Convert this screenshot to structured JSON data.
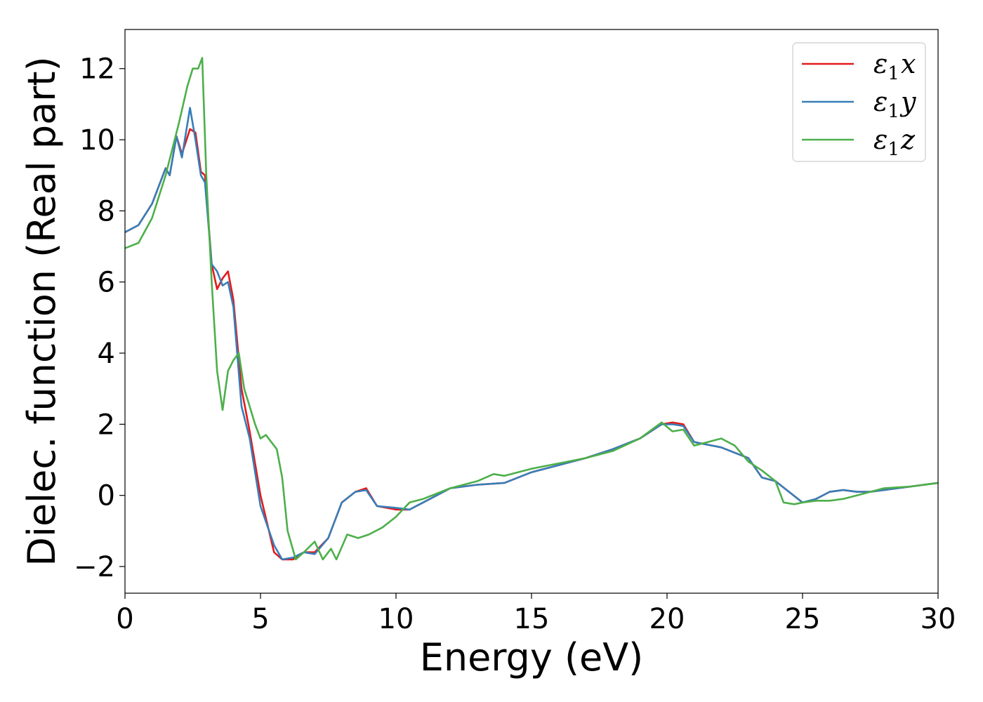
{
  "chart_data": {
    "type": "line",
    "title": "",
    "xlabel": "Energy (eV)",
    "ylabel": "Dielec. function (Real part)",
    "xlim": [
      0,
      30
    ],
    "ylim": [
      -2.75,
      13.1
    ],
    "xticks": [
      0,
      5,
      10,
      15,
      20,
      25,
      30
    ],
    "xtick_labels": [
      "0",
      "5",
      "10",
      "15",
      "20",
      "25",
      "30"
    ],
    "yticks": [
      -2,
      0,
      2,
      4,
      6,
      8,
      10,
      12
    ],
    "ytick_labels": [
      "−2",
      "0",
      "2",
      "4",
      "6",
      "8",
      "10",
      "12"
    ],
    "grid": false,
    "legend_position": "top-right",
    "series": [
      {
        "name": "ε₁x",
        "legend_main": "ε",
        "legend_sub": "1",
        "legend_var": "x",
        "color": "#e41a1c",
        "x": [
          0,
          0.5,
          1.0,
          1.3,
          1.5,
          1.65,
          1.9,
          2.1,
          2.4,
          2.6,
          2.8,
          2.95,
          3.2,
          3.4,
          3.6,
          3.8,
          4.0,
          4.3,
          4.6,
          5.0,
          5.5,
          5.8,
          6.2,
          6.6,
          7.0,
          7.5,
          8.0,
          8.5,
          8.9,
          9.3,
          10.0,
          10.5,
          11.0,
          12.0,
          13.0,
          14.0,
          15.0,
          16.0,
          17.0,
          18.0,
          19.0,
          19.8,
          20.2,
          20.6,
          21.0,
          22.0,
          22.5,
          23.0,
          23.5,
          24.0,
          24.5,
          25.0,
          25.5,
          26.0,
          26.5,
          27.0,
          27.5,
          28.0,
          29.0,
          30.0
        ],
        "values": [
          7.4,
          7.6,
          8.2,
          8.8,
          9.2,
          9.0,
          10.1,
          9.6,
          10.3,
          10.2,
          9.1,
          9.0,
          6.5,
          5.8,
          6.1,
          6.3,
          5.5,
          3.0,
          1.8,
          0.0,
          -1.6,
          -1.8,
          -1.8,
          -1.6,
          -1.6,
          -1.2,
          -0.2,
          0.1,
          0.2,
          -0.3,
          -0.4,
          -0.4,
          -0.2,
          0.2,
          0.3,
          0.35,
          0.65,
          0.85,
          1.05,
          1.3,
          1.6,
          2.0,
          2.05,
          2.0,
          1.5,
          1.35,
          1.2,
          1.05,
          0.5,
          0.4,
          0.1,
          -0.2,
          -0.1,
          0.1,
          0.15,
          0.1,
          0.1,
          0.15,
          0.25,
          0.35
        ]
      },
      {
        "name": "ε₁y",
        "legend_main": "ε",
        "legend_sub": "1",
        "legend_var": "y",
        "color": "#377eb8",
        "x": [
          0,
          0.5,
          1.0,
          1.3,
          1.5,
          1.65,
          1.9,
          2.1,
          2.4,
          2.6,
          2.8,
          2.95,
          3.2,
          3.4,
          3.6,
          3.8,
          4.0,
          4.3,
          4.6,
          5.0,
          5.5,
          5.8,
          6.2,
          6.6,
          7.0,
          7.5,
          8.0,
          8.5,
          8.9,
          9.3,
          10.0,
          10.5,
          11.0,
          12.0,
          13.0,
          14.0,
          15.0,
          16.0,
          17.0,
          18.0,
          19.0,
          19.8,
          20.2,
          20.6,
          21.0,
          22.0,
          22.5,
          23.0,
          23.5,
          24.0,
          24.5,
          25.0,
          25.5,
          26.0,
          26.5,
          27.0,
          27.5,
          28.0,
          29.0,
          30.0
        ],
        "values": [
          7.4,
          7.6,
          8.2,
          8.8,
          9.2,
          9.0,
          10.1,
          9.5,
          10.9,
          10.0,
          9.0,
          8.8,
          6.5,
          6.3,
          5.9,
          6.0,
          5.3,
          2.5,
          1.6,
          -0.3,
          -1.4,
          -1.8,
          -1.75,
          -1.6,
          -1.65,
          -1.2,
          -0.2,
          0.1,
          0.15,
          -0.3,
          -0.35,
          -0.4,
          -0.2,
          0.2,
          0.3,
          0.35,
          0.65,
          0.85,
          1.05,
          1.3,
          1.6,
          2.0,
          2.0,
          1.95,
          1.5,
          1.35,
          1.2,
          1.05,
          0.5,
          0.4,
          0.1,
          -0.2,
          -0.1,
          0.1,
          0.15,
          0.1,
          0.1,
          0.15,
          0.25,
          0.35
        ]
      },
      {
        "name": "ε₁z",
        "legend_main": "ε",
        "legend_sub": "1",
        "legend_var": "z",
        "color": "#4daf4a",
        "x": [
          0,
          0.5,
          1.0,
          1.5,
          2.0,
          2.3,
          2.5,
          2.7,
          2.85,
          3.0,
          3.2,
          3.4,
          3.6,
          3.8,
          4.0,
          4.2,
          4.4,
          4.6,
          4.8,
          5.0,
          5.2,
          5.4,
          5.6,
          5.8,
          6.0,
          6.3,
          6.6,
          7.0,
          7.3,
          7.6,
          7.8,
          8.2,
          8.6,
          9.0,
          9.5,
          10.0,
          10.5,
          11.0,
          12.0,
          13.0,
          13.6,
          14.0,
          15.0,
          16.0,
          17.0,
          18.0,
          19.0,
          19.8,
          20.2,
          20.6,
          21.0,
          21.5,
          22.0,
          22.5,
          23.0,
          23.5,
          24.0,
          24.3,
          24.7,
          25.0,
          25.5,
          26.0,
          26.5,
          27.0,
          28.0,
          29.0,
          30.0
        ],
        "values": [
          6.95,
          7.1,
          7.8,
          9.0,
          10.5,
          11.5,
          12.0,
          12.0,
          12.3,
          9.0,
          6.0,
          3.5,
          2.4,
          3.5,
          3.8,
          4.0,
          3.0,
          2.5,
          2.0,
          1.6,
          1.7,
          1.5,
          1.3,
          0.5,
          -1.0,
          -1.8,
          -1.6,
          -1.3,
          -1.8,
          -1.5,
          -1.8,
          -1.1,
          -1.2,
          -1.1,
          -0.9,
          -0.6,
          -0.2,
          -0.1,
          0.2,
          0.4,
          0.6,
          0.55,
          0.75,
          0.9,
          1.05,
          1.25,
          1.6,
          2.05,
          1.8,
          1.85,
          1.4,
          1.5,
          1.6,
          1.4,
          0.95,
          0.7,
          0.4,
          -0.2,
          -0.25,
          -0.2,
          -0.15,
          -0.15,
          -0.1,
          0.0,
          0.2,
          0.25,
          0.35
        ]
      }
    ]
  }
}
